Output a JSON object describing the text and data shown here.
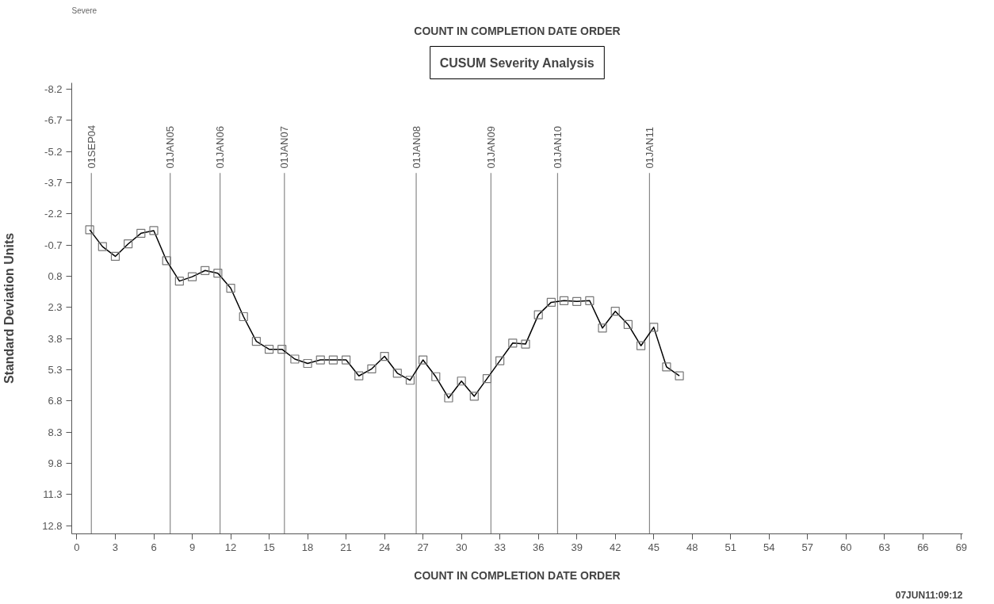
{
  "chart_data": {
    "type": "line",
    "title": "CUSUM Severity Analysis",
    "subtitle": "COUNT IN COMPLETION DATE ORDER",
    "xlabel": "COUNT IN COMPLETION DATE ORDER",
    "ylabel": "Standard Deviation Units",
    "annotations": [
      "Severe",
      "07JUN11:09:12"
    ],
    "x": [
      1,
      2,
      3,
      4,
      5,
      6,
      7,
      8,
      9,
      10,
      11,
      12,
      13,
      14,
      15,
      16,
      17,
      18,
      19,
      20,
      21,
      22,
      23,
      24,
      25,
      26,
      27,
      28,
      29,
      30,
      31,
      32,
      33,
      34,
      35,
      36,
      37,
      38,
      39,
      40,
      41,
      42,
      43,
      44,
      45,
      46,
      47
    ],
    "series": [
      {
        "color": "#000000",
        "values": [
          -1.43,
          -0.62,
          -0.15,
          -0.75,
          -1.26,
          -1.39,
          0.06,
          1.04,
          0.83,
          0.53,
          0.66,
          1.38,
          2.75,
          3.94,
          4.32,
          4.32,
          4.79,
          5.0,
          4.83,
          4.83,
          4.83,
          5.6,
          5.26,
          4.66,
          5.47,
          5.81,
          4.83,
          5.64,
          6.66,
          5.85,
          6.58,
          5.73,
          4.87,
          4.02,
          4.07,
          2.66,
          2.06,
          1.98,
          2.02,
          1.98,
          3.3,
          2.49,
          3.13,
          4.15,
          3.26,
          5.17,
          5.6
        ]
      }
    ],
    "marker": "square",
    "line_style": "solid",
    "grid": false,
    "xlim": [
      -0.4,
      69.1
    ],
    "xticks": [
      0,
      3,
      6,
      9,
      12,
      15,
      18,
      21,
      24,
      27,
      30,
      33,
      36,
      39,
      42,
      45,
      48,
      51,
      54,
      57,
      60,
      63,
      66,
      69
    ],
    "ylim": [
      13.2,
      -8.5
    ],
    "yticks": [
      -8.2,
      -6.7,
      -5.2,
      -3.7,
      -2.2,
      -0.7,
      0.8,
      2.3,
      3.8,
      5.3,
      6.8,
      8.3,
      9.8,
      11.3,
      12.8
    ],
    "ref_lines": [
      {
        "axis": "x",
        "value": 1.13,
        "label": "01SEP04"
      },
      {
        "axis": "x",
        "value": 7.28,
        "label": "01JAN05"
      },
      {
        "axis": "x",
        "value": 11.17,
        "label": "01JAN06"
      },
      {
        "axis": "x",
        "value": 16.19,
        "label": "01JAN07"
      },
      {
        "axis": "x",
        "value": 26.47,
        "label": "01JAN08"
      },
      {
        "axis": "x",
        "value": 32.3,
        "label": "01JAN09"
      },
      {
        "axis": "x",
        "value": 37.5,
        "label": "01JAN10"
      },
      {
        "axis": "x",
        "value": 44.67,
        "label": "01JAN11"
      }
    ]
  }
}
